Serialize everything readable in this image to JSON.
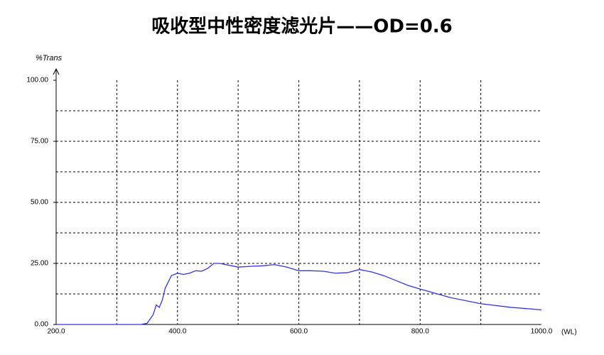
{
  "chart_data": {
    "type": "line",
    "title": "吸收型中性密度滤光片——OD=0.6",
    "y_label": "%Trans",
    "x_label": "(WL)",
    "xlim": [
      200,
      1000
    ],
    "ylim": [
      0,
      100
    ],
    "xticks": [
      {
        "value": 200,
        "label": "200.0"
      },
      {
        "value": 400,
        "label": "400.0"
      },
      {
        "value": 600,
        "label": "600.0"
      },
      {
        "value": 800,
        "label": "800.0"
      },
      {
        "value": 1000,
        "label": "1000.0"
      }
    ],
    "yticks": [
      {
        "value": 0,
        "label": "0.00"
      },
      {
        "value": 25,
        "label": "25.00"
      },
      {
        "value": 50,
        "label": "50.00"
      },
      {
        "value": 75,
        "label": "75.00"
      },
      {
        "value": 100,
        "label": "100.00"
      }
    ],
    "minor_xticks": [
      300,
      500,
      700,
      900
    ],
    "minor_yticks": [
      12.5,
      37.5,
      62.5,
      87.5
    ],
    "grid": true,
    "x": [
      200,
      250,
      300,
      340,
      350,
      360,
      365,
      370,
      375,
      380,
      390,
      400,
      410,
      420,
      430,
      440,
      450,
      460,
      470,
      480,
      500,
      520,
      540,
      560,
      580,
      600,
      620,
      640,
      660,
      680,
      700,
      720,
      740,
      760,
      780,
      800,
      850,
      900,
      950,
      1000
    ],
    "series": [
      {
        "color": "#3333e6",
        "values": [
          0,
          0,
          0,
          0,
          0.5,
          4,
          8,
          7,
          10,
          15,
          20,
          21,
          20.5,
          21,
          22,
          21.8,
          23,
          25,
          25,
          24.5,
          23.5,
          23.8,
          24,
          24.5,
          23.5,
          22,
          22,
          21.8,
          21,
          21.2,
          22.5,
          21.5,
          20,
          18,
          16,
          14.5,
          11,
          8.5,
          7,
          6
        ]
      }
    ]
  }
}
